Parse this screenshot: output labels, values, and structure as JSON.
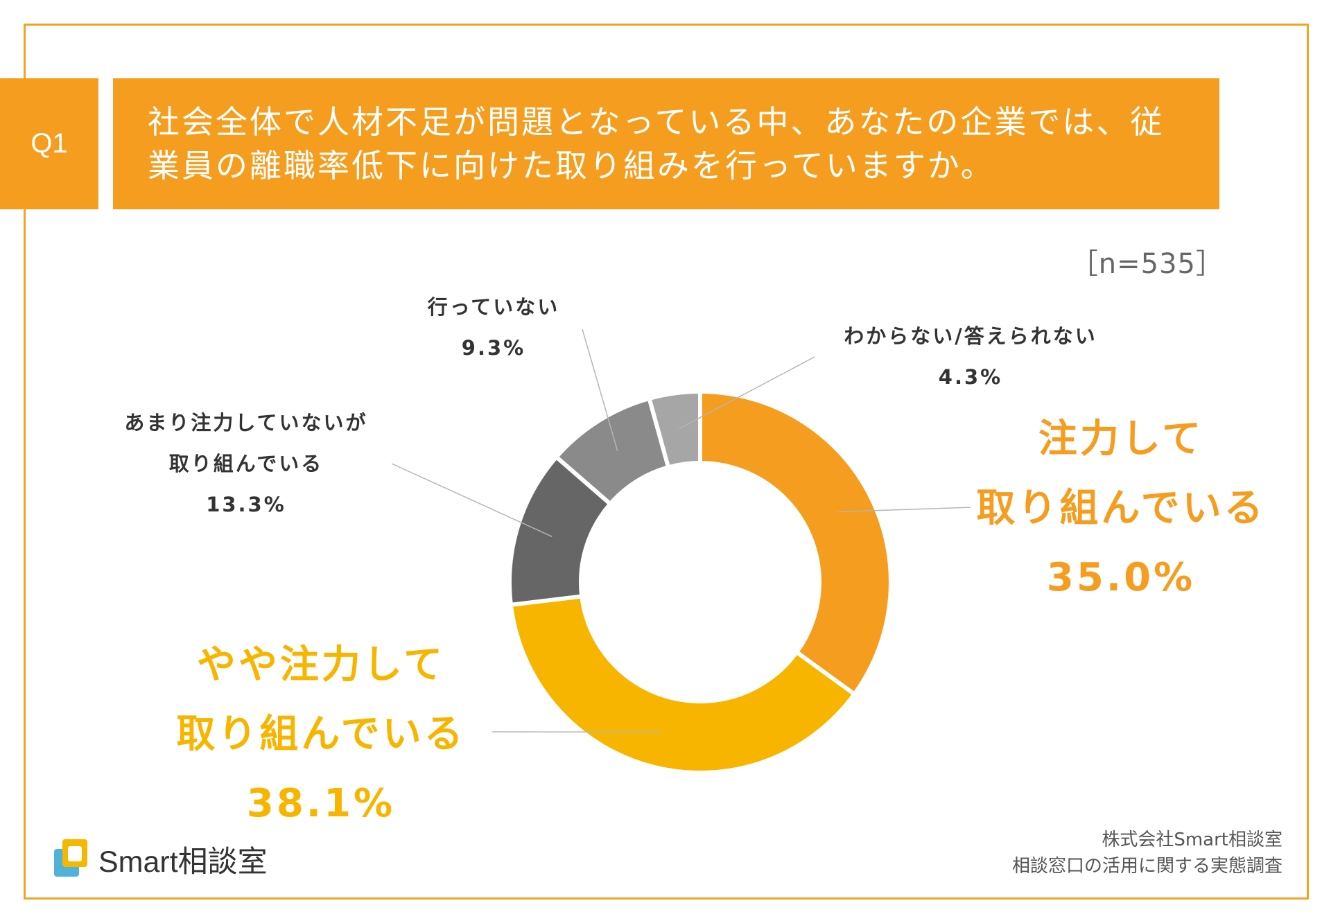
{
  "question": {
    "number": "Q1",
    "text_line1": "社会全体で人材不足が問題となっている中、あなたの企業では、従",
    "text_line2": "業員の離職率低下に向けた取り組みを行っていますか。"
  },
  "sample_size": "［n=535］",
  "chart_data": {
    "type": "pie",
    "donut": true,
    "title": "社会全体で人材不足が問題となっている中、あなたの企業では、従業員の離職率低下に向けた取り組みを行っていますか。",
    "n": 535,
    "slices": [
      {
        "label_lines": [
          "注力して",
          "取り組んでいる"
        ],
        "value": 35.0,
        "value_text": "35.0%",
        "color": "#f59d1e"
      },
      {
        "label_lines": [
          "やや注力して",
          "取り組んでいる"
        ],
        "value": 38.1,
        "value_text": "38.1%",
        "color": "#f8b500"
      },
      {
        "label_lines": [
          "あまり注力していないが",
          "取り組んでいる"
        ],
        "value": 13.3,
        "value_text": "13.3%",
        "color": "#666666"
      },
      {
        "label_lines": [
          "行っていない"
        ],
        "value": 9.3,
        "value_text": "9.3%",
        "color": "#8a8a8a"
      },
      {
        "label_lines": [
          "わからない/答えられない"
        ],
        "value": 4.3,
        "value_text": "4.3%",
        "color": "#a6a6a6"
      }
    ]
  },
  "source": {
    "line1": "株式会社Smart相談室",
    "line2": "相談窓口の活用に関する実態調査"
  },
  "logo": {
    "text": "Smart相談室",
    "colors": {
      "yellow": "#f5b800",
      "blue": "#4fb3d9"
    }
  }
}
